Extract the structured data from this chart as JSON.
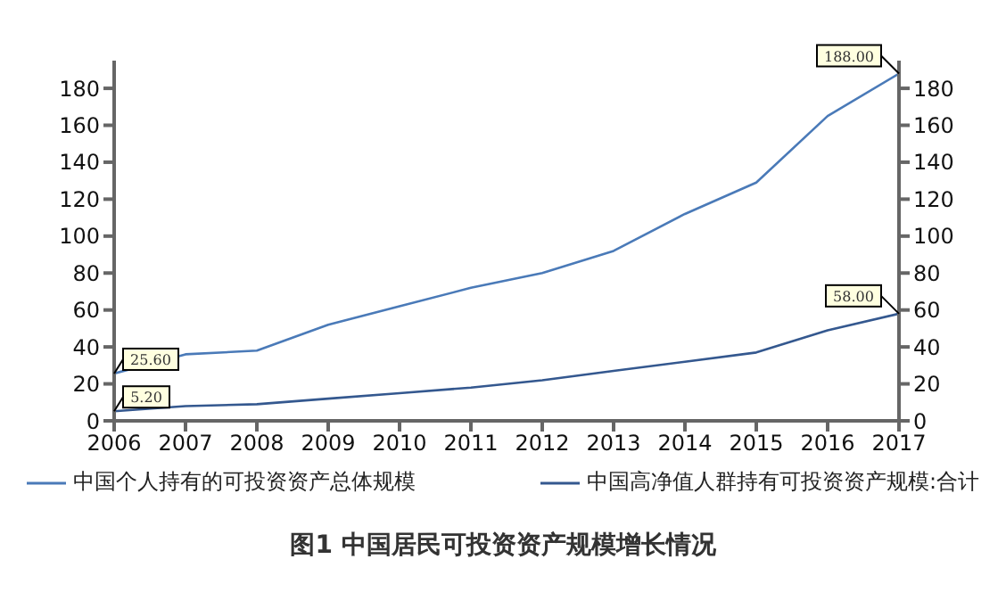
{
  "chart_data": {
    "type": "line",
    "title": "图1 中国居民可投资资产规模增长情况",
    "x": [
      2006,
      2007,
      2008,
      2009,
      2010,
      2011,
      2012,
      2013,
      2014,
      2015,
      2016,
      2017
    ],
    "series": [
      {
        "name": "中国个人持有的可投资资产总体规模",
        "color": "#4a7ab8",
        "values": [
          25.6,
          36,
          38,
          52,
          62,
          72,
          80,
          92,
          112,
          129,
          165,
          188
        ],
        "value_labels": [
          "25.60",
          null,
          null,
          null,
          null,
          null,
          null,
          null,
          null,
          null,
          null,
          "188.00"
        ]
      },
      {
        "name": "中国高净值人群持有可投资资产规模:合计",
        "color": "#34588f",
        "values": [
          5.2,
          8,
          9,
          12,
          15,
          18,
          22,
          27,
          32,
          37,
          49,
          58
        ],
        "value_labels": [
          "5.20",
          null,
          null,
          null,
          null,
          null,
          null,
          null,
          null,
          null,
          null,
          "58.00"
        ]
      }
    ],
    "xlim": [
      2006,
      2017
    ],
    "xticks": [
      2006,
      2007,
      2008,
      2009,
      2010,
      2011,
      2012,
      2013,
      2014,
      2015,
      2016,
      2017
    ],
    "ylim": [
      0,
      195
    ],
    "yticks": [
      0,
      20,
      40,
      60,
      80,
      100,
      120,
      140,
      160,
      180
    ],
    "y2lim": [
      0,
      195
    ],
    "y2ticks": [
      0,
      20,
      40,
      60,
      80,
      100,
      120,
      140,
      160,
      180
    ],
    "grid": false,
    "legend": "bottom",
    "marker": "none",
    "line_style": "solid"
  }
}
